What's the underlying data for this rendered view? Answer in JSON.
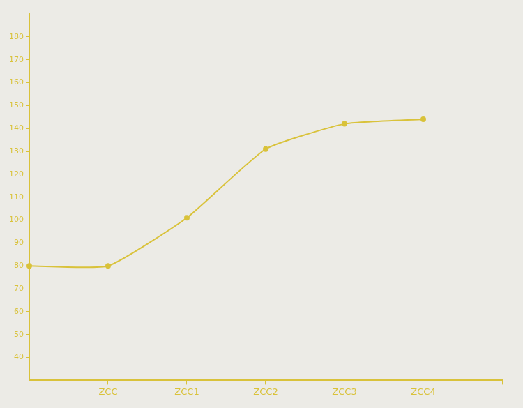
{
  "chart_data": {
    "type": "line",
    "categories": [
      null,
      "ZCC",
      "ZCC1",
      "ZCC2",
      "ZCC3",
      "ZCC4",
      null
    ],
    "values": [
      80,
      80,
      101,
      131,
      142,
      144,
      null
    ],
    "color": "#d9c23a",
    "marker": "circle",
    "ylim": [
      30,
      190
    ],
    "yticks": [
      40,
      50,
      60,
      70,
      80,
      90,
      100,
      110,
      120,
      130,
      140,
      150,
      160,
      170,
      180
    ],
    "grid": false
  }
}
